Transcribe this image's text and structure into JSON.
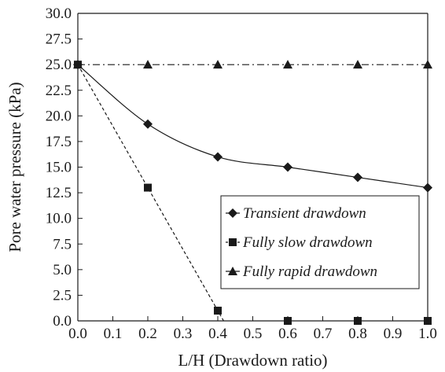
{
  "chart_data": {
    "type": "line",
    "title": "",
    "xlabel": "L/H (Drawdown ratio)",
    "ylabel": "Pore water pressure (kPa)",
    "xlim": [
      0.0,
      1.0
    ],
    "ylim": [
      0.0,
      30.0
    ],
    "x_ticks": [
      "0.0",
      "0.1",
      "0.2",
      "0.3",
      "0.4",
      "0.5",
      "0.6",
      "0.7",
      "0.8",
      "0.9",
      "1.0"
    ],
    "y_ticks": [
      "0.0",
      "2.5",
      "5.0",
      "7.5",
      "10.0",
      "12.5",
      "15.0",
      "17.5",
      "20.0",
      "22.5",
      "25.0",
      "27.5",
      "30.0"
    ],
    "grid": false,
    "legend_position": "bottom-right",
    "series": [
      {
        "name": "Transient drawdown",
        "marker": "diamond",
        "line_style": "solid",
        "x": [
          0.0,
          0.2,
          0.4,
          0.6,
          0.8,
          1.0
        ],
        "y": [
          25.0,
          19.2,
          16.0,
          15.0,
          14.0,
          13.0
        ]
      },
      {
        "name": "Fully slow drawdown",
        "marker": "square",
        "line_style": "dashed",
        "x": [
          0.0,
          0.2,
          0.4,
          0.6,
          0.8,
          1.0
        ],
        "y": [
          25.0,
          13.0,
          1.0,
          0.0,
          0.0,
          0.0
        ]
      },
      {
        "name": "Fully rapid drawdown",
        "marker": "triangle",
        "line_style": "dash-dot",
        "x": [
          0.0,
          0.2,
          0.4,
          0.6,
          0.8,
          1.0
        ],
        "y": [
          25.0,
          25.0,
          25.0,
          25.0,
          25.0,
          25.0
        ]
      }
    ]
  },
  "colors": {
    "ink": "#1a1a1a",
    "background": "#ffffff"
  }
}
